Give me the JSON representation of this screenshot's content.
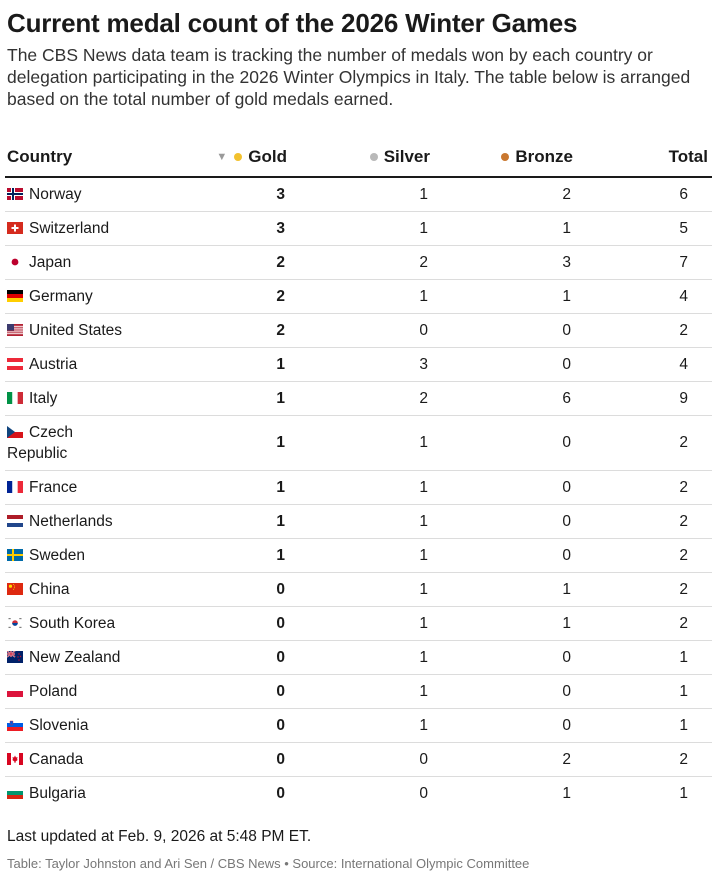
{
  "header": {
    "title": "Current medal count of the 2026 Winter Games",
    "subtitle": "The CBS News data team is tracking the number of medals won by each country or delegation participating in the 2026 Winter Olympics in Italy. The table below is arranged based on the total number of gold medals earned."
  },
  "table": {
    "columns": {
      "country": "Country",
      "gold": "Gold",
      "silver": "Silver",
      "bronze": "Bronze",
      "total": "Total"
    },
    "sort_indicator": "▼",
    "colors": {
      "gold": "#f2c12e",
      "silver": "#b9b9b9",
      "bronze": "#c9772f"
    },
    "rows": [
      {
        "country": "Norway",
        "flag": "norway-flag",
        "gold": "3",
        "silver": "1",
        "bronze": "2",
        "total": "6"
      },
      {
        "country": "Switzerland",
        "flag": "switzerland-flag",
        "gold": "3",
        "silver": "1",
        "bronze": "1",
        "total": "5"
      },
      {
        "country": "Japan",
        "flag": "japan-flag",
        "gold": "2",
        "silver": "2",
        "bronze": "3",
        "total": "7"
      },
      {
        "country": "Germany",
        "flag": "germany-flag",
        "gold": "2",
        "silver": "1",
        "bronze": "1",
        "total": "4"
      },
      {
        "country": "United States",
        "flag": "usa-flag",
        "gold": "2",
        "silver": "0",
        "bronze": "0",
        "total": "2"
      },
      {
        "country": "Austria",
        "flag": "austria-flag",
        "gold": "1",
        "silver": "3",
        "bronze": "0",
        "total": "4"
      },
      {
        "country": "Italy",
        "flag": "italy-flag",
        "gold": "1",
        "silver": "2",
        "bronze": "6",
        "total": "9"
      },
      {
        "country": "Czech Republic",
        "flag": "czech-flag",
        "gold": "1",
        "silver": "1",
        "bronze": "0",
        "total": "2"
      },
      {
        "country": "France",
        "flag": "france-flag",
        "gold": "1",
        "silver": "1",
        "bronze": "0",
        "total": "2"
      },
      {
        "country": "Netherlands",
        "flag": "netherlands-flag",
        "gold": "1",
        "silver": "1",
        "bronze": "0",
        "total": "2"
      },
      {
        "country": "Sweden",
        "flag": "sweden-flag",
        "gold": "1",
        "silver": "1",
        "bronze": "0",
        "total": "2"
      },
      {
        "country": "China",
        "flag": "china-flag",
        "gold": "0",
        "silver": "1",
        "bronze": "1",
        "total": "2"
      },
      {
        "country": "South Korea",
        "flag": "south-korea-flag",
        "gold": "0",
        "silver": "1",
        "bronze": "1",
        "total": "2"
      },
      {
        "country": "New Zealand",
        "flag": "new-zealand-flag",
        "gold": "0",
        "silver": "1",
        "bronze": "0",
        "total": "1"
      },
      {
        "country": "Poland",
        "flag": "poland-flag",
        "gold": "0",
        "silver": "1",
        "bronze": "0",
        "total": "1"
      },
      {
        "country": "Slovenia",
        "flag": "slovenia-flag",
        "gold": "0",
        "silver": "1",
        "bronze": "0",
        "total": "1"
      },
      {
        "country": "Canada",
        "flag": "canada-flag",
        "gold": "0",
        "silver": "0",
        "bronze": "2",
        "total": "2"
      },
      {
        "country": "Bulgaria",
        "flag": "bulgaria-flag",
        "gold": "0",
        "silver": "0",
        "bronze": "1",
        "total": "1"
      }
    ]
  },
  "footer": {
    "updated": "Last updated at Feb. 9, 2026 at 5:48 PM ET.",
    "credit": "Table: Taylor Johnston and Ari Sen / CBS News • Source: International Olympic Committee"
  }
}
